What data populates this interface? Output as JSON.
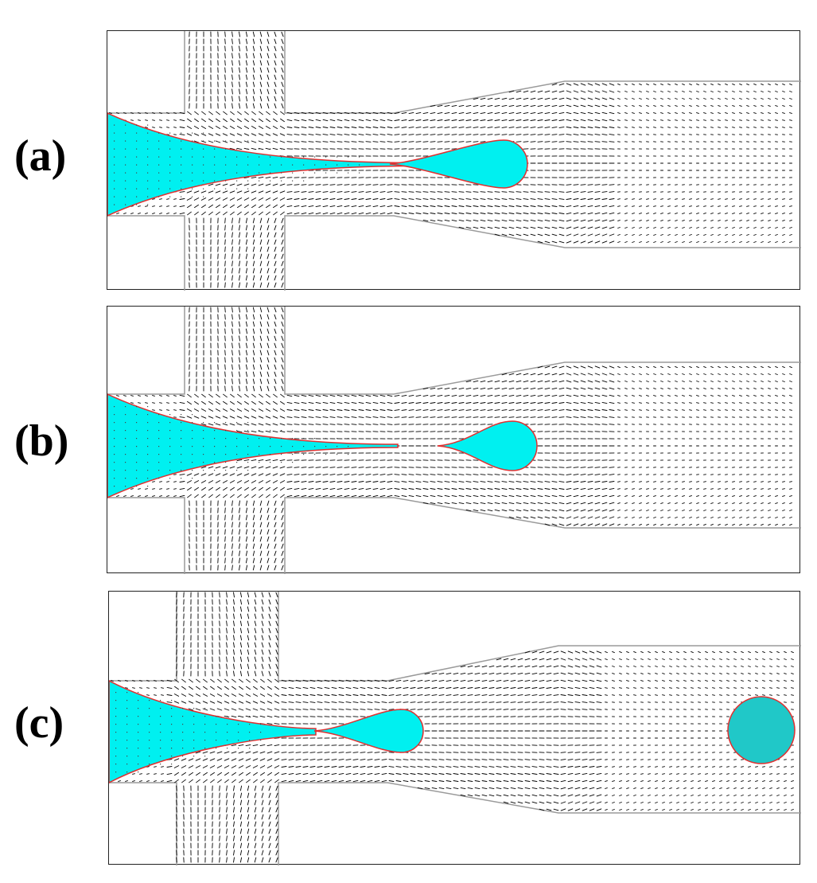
{
  "panels": [
    {
      "label": "(a)",
      "state": "droplet-pinching",
      "drops": [
        {
          "kind": "teardrop"
        }
      ]
    },
    {
      "label": "(b)",
      "state": "droplet-detached",
      "drops": [
        {
          "kind": "teardrop"
        }
      ]
    },
    {
      "label": "(c)",
      "state": "droplet-flowing-downstream",
      "drops": [
        {
          "kind": "teardrop"
        },
        {
          "kind": "circle"
        }
      ]
    }
  ],
  "colors": {
    "dispersed_phase": "#00f0f0",
    "interface": "#e03030",
    "channel_wall": "#9a9a9a",
    "frame": "#222222",
    "vectors": "#000000"
  }
}
